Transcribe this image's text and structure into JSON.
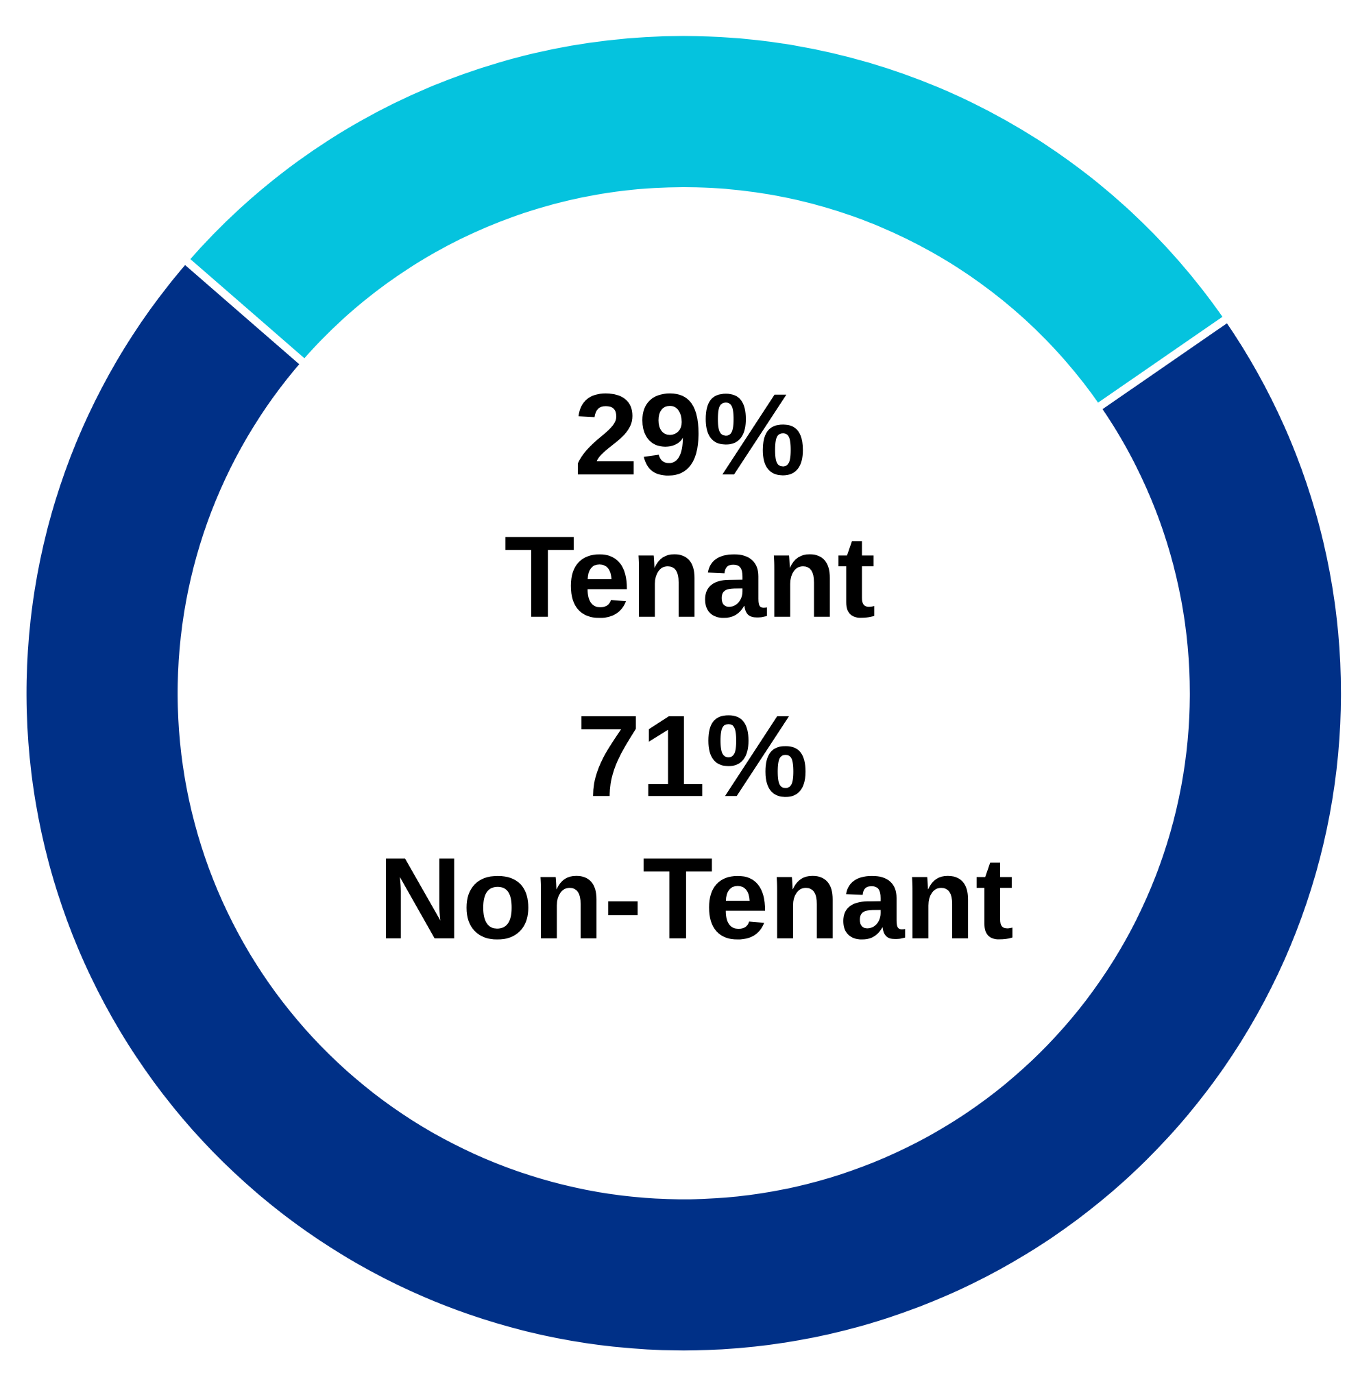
{
  "chart_data": {
    "type": "pie",
    "style": "donut",
    "categories": [
      "Tenant",
      "Non-Tenant"
    ],
    "values": [
      29,
      71
    ],
    "unit": "%",
    "colors": [
      "#05C3DE",
      "#003087"
    ],
    "labels": [
      {
        "value": "29%",
        "name": "Tenant"
      },
      {
        "value": "71%",
        "name": "Non-Tenant"
      }
    ]
  }
}
